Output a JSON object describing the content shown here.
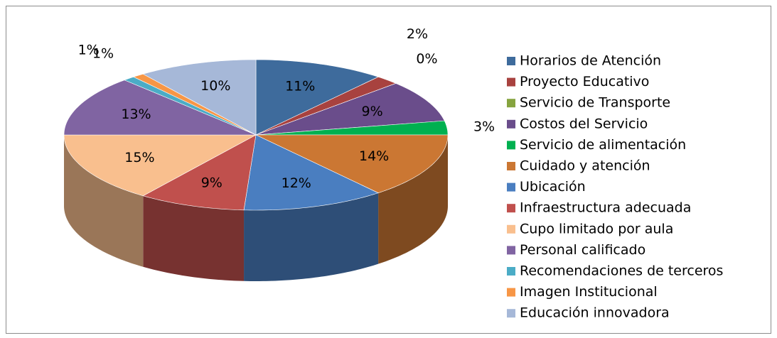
{
  "chart_data": {
    "type": "pie3d",
    "categories": [
      "Horarios de Atención",
      "Proyecto Educativo",
      "Servicio de Transporte",
      "Costos del Servicio",
      "Servicio de alimentación",
      " Cuidado y atención",
      "Ubicación",
      "Infraestructura adecuada",
      "Cupo limitado por aula",
      "Personal calificado",
      "Recomendaciones de terceros",
      "Imagen Institucional",
      " Educación innovadora"
    ],
    "values": [
      11,
      2,
      0,
      9,
      3,
      14,
      12,
      9,
      15,
      13,
      1,
      1,
      10
    ],
    "value_labels": [
      "11%",
      "2%",
      "0%",
      "9%",
      "3%",
      "14%",
      "12%",
      "9%",
      "15%",
      "13%",
      "1%",
      "1%",
      "10%"
    ],
    "colors": [
      "#3e6b9c",
      "#a8423f",
      "#86a43f",
      "#6a4d8b",
      "#00b050",
      "#cb7733",
      "#4a7ec0",
      "#c0504d",
      "#f9bf8e",
      "#8064a2",
      "#4bacc6",
      "#f79646",
      "#a6b8d8"
    ],
    "legend": "right"
  }
}
